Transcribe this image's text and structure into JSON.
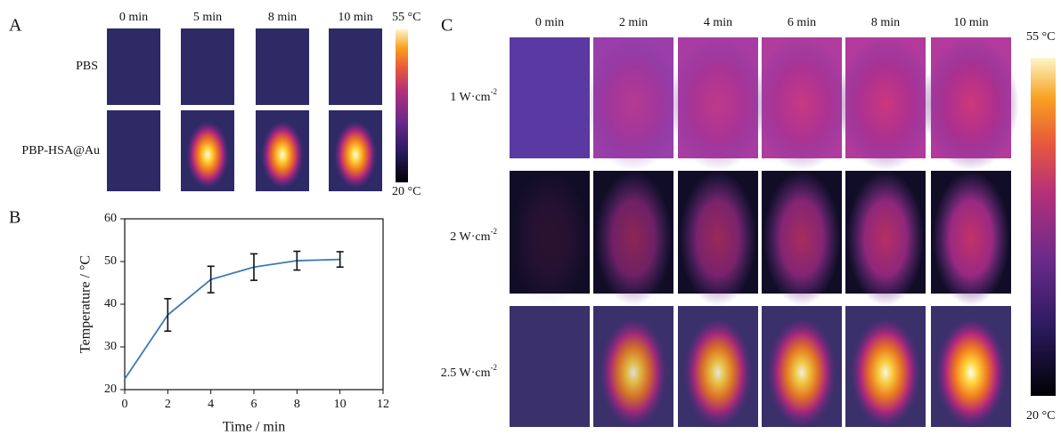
{
  "panel_a": {
    "label": "A",
    "columns": [
      "0 min",
      "5 min",
      "8 min",
      "10 min"
    ],
    "rows": [
      "PBS",
      "PBP-HSA@Au"
    ],
    "colorbar": {
      "max": "55 °C",
      "min": "20 °C"
    }
  },
  "panel_b": {
    "label": "B"
  },
  "panel_c": {
    "label": "C",
    "columns": [
      "0 min",
      "2 min",
      "4 min",
      "6 min",
      "8 min",
      "10 min"
    ],
    "rows": [
      {
        "text": "1 W·cm",
        "sup": "-2"
      },
      {
        "text": "2 W·cm",
        "sup": "-2"
      },
      {
        "text": "2.5 W·cm",
        "sup": "-2"
      }
    ],
    "colorbar": {
      "max": "55 °C",
      "min": "20 °C"
    }
  },
  "chart_data": {
    "type": "line",
    "x_label": "Time / min",
    "y_label": "Temperature / °C",
    "x": [
      0,
      2,
      4,
      6,
      8,
      10
    ],
    "values": [
      22.5,
      37.5,
      45.8,
      48.7,
      50.2,
      50.5
    ],
    "errors": [
      null,
      3.8,
      3.1,
      3.1,
      2.2,
      1.8
    ],
    "color": "#3a7bb5",
    "xlim": [
      0,
      12
    ],
    "xticks": [
      0,
      2,
      4,
      6,
      8,
      10,
      12
    ],
    "ylim": [
      20,
      60
    ],
    "yticks": [
      20,
      30,
      40,
      50,
      60
    ]
  }
}
